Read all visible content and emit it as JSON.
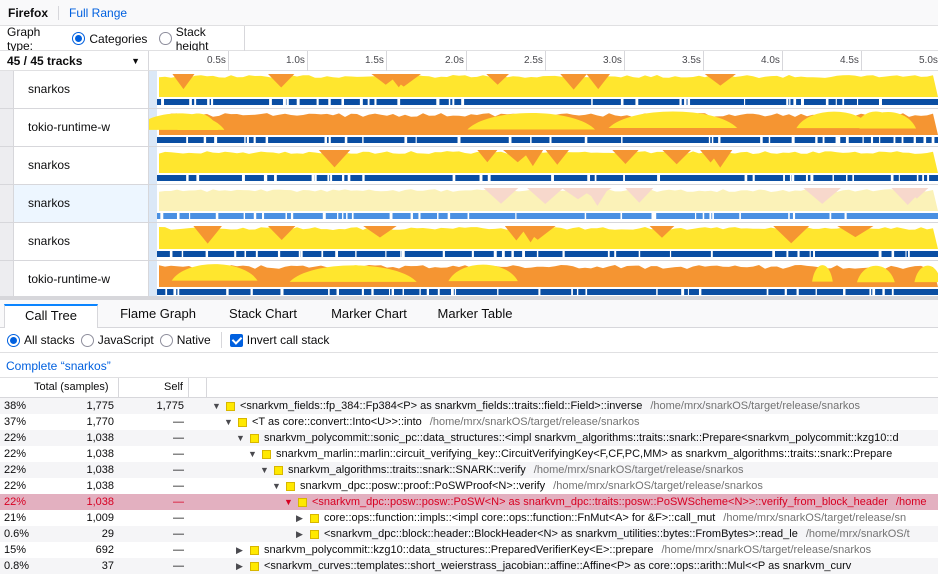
{
  "topbar": {
    "root": "Firefox",
    "range": "Full Range"
  },
  "graph_type": {
    "label": "Graph type:",
    "options": [
      "Categories",
      "Stack height"
    ],
    "selected": "Categories"
  },
  "tracks_header": {
    "count": "45 / 45 tracks"
  },
  "timeline": {
    "ticks": [
      "0.5s",
      "1.0s",
      "1.5s",
      "2.0s",
      "2.5s",
      "3.0s",
      "3.5s",
      "4.0s",
      "4.5s",
      "5.0s"
    ]
  },
  "tracks": [
    {
      "name": "snarkos"
    },
    {
      "name": "tokio-runtime-w"
    },
    {
      "name": "snarkos"
    },
    {
      "name": "snarkos",
      "selected": true
    },
    {
      "name": "snarkos"
    },
    {
      "name": "tokio-runtime-w"
    }
  ],
  "tabs": [
    "Call Tree",
    "Flame Graph",
    "Stack Chart",
    "Marker Chart",
    "Marker Table"
  ],
  "active_tab": "Call Tree",
  "options": {
    "all_stacks": "All stacks",
    "javascript": "JavaScript",
    "native": "Native",
    "invert": "Invert call stack"
  },
  "breadcrumb": "Complete “snarkos”",
  "tree_header": {
    "total": "Total (samples)",
    "self": "Self"
  },
  "colors": {
    "yellow": "#ffe62e",
    "orange": "#f59532",
    "blue": "#0a4ea3",
    "selected_row": "#e3b0c0",
    "accent": "#0060df"
  },
  "rows": [
    {
      "pct": "38%",
      "total": "1,775",
      "self": "1,775",
      "fn": "<snarkvm_fields::fp_384::Fp384<P> as snarkvm_fields::traits::field::Field>::inverse",
      "lib": "/home/mrx/snarkOS/target/release/snarkos"
    },
    {
      "pct": "37%",
      "total": "1,770",
      "self": "—",
      "fn": "<T as core::convert::Into<U>>::into",
      "lib": "/home/mrx/snarkOS/target/release/snarkos"
    },
    {
      "pct": "22%",
      "total": "1,038",
      "self": "—",
      "fn": "snarkvm_polycommit::sonic_pc::data_structures::<impl snarkvm_algorithms::traits::snark::Prepare<snarkvm_polycommit::kzg10::d",
      "lib": ""
    },
    {
      "pct": "22%",
      "total": "1,038",
      "self": "—",
      "fn": "snarkvm_marlin::marlin::circuit_verifying_key::CircuitVerifyingKey<F,CF,PC,MM> as snarkvm_algorithms::traits::snark::Prepare",
      "lib": ""
    },
    {
      "pct": "22%",
      "total": "1,038",
      "self": "—",
      "fn": "snarkvm_algorithms::traits::snark::SNARK::verify",
      "lib": "/home/mrx/snarkOS/target/release/snarkos"
    },
    {
      "pct": "22%",
      "total": "1,038",
      "self": "—",
      "fn": "snarkvm_dpc::posw::proof::PoSWProof<N>::verify",
      "lib": "/home/mrx/snarkOS/target/release/snarkos"
    },
    {
      "pct": "22%",
      "total": "1,038",
      "self": "—",
      "fn": "<snarkvm_dpc::posw::posw::PoSW<N> as snarkvm_dpc::traits::posw::PoSWScheme<N>>::verify_from_block_header",
      "lib": "/home"
    },
    {
      "pct": "21%",
      "total": "1,009",
      "self": "—",
      "fn": "core::ops::function::impls::<impl core::ops::function::FnMut<A> for &F>::call_mut",
      "lib": "/home/mrx/snarkOS/target/release/sn"
    },
    {
      "pct": "0.6%",
      "total": "29",
      "self": "—",
      "fn": "<snarkvm_dpc::block::header::BlockHeader<N> as snarkvm_utilities::bytes::FromBytes>::read_le",
      "lib": "/home/mrx/snarkOS/t"
    },
    {
      "pct": "15%",
      "total": "692",
      "self": "—",
      "fn": "snarkvm_polycommit::kzg10::data_structures::PreparedVerifierKey<E>::prepare",
      "lib": "/home/mrx/snarkOS/target/release/snarkos"
    },
    {
      "pct": "0.8%",
      "total": "37",
      "self": "—",
      "fn": "<snarkvm_curves::templates::short_weierstrass_jacobian::affine::Affine<P> as core::ops::arith::Mul<<P as snarkvm_curv",
      "lib": ""
    }
  ]
}
